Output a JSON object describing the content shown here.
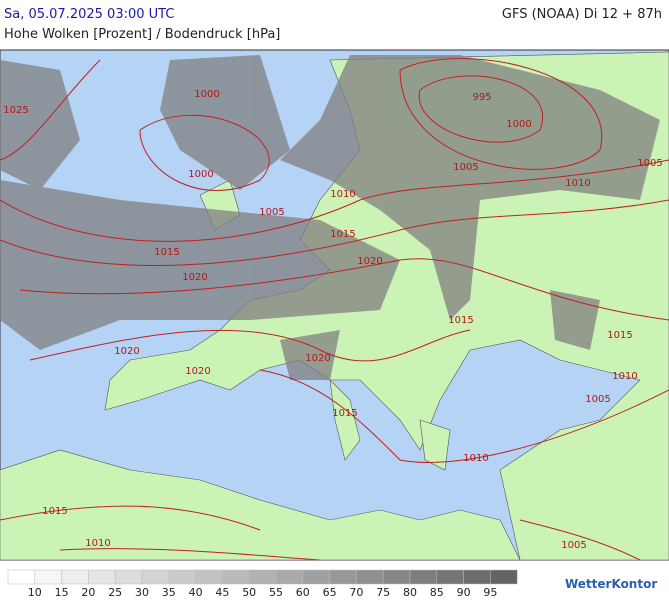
{
  "header": {
    "datetime": "Sa, 05.07.2025 03:00 UTC",
    "model": "GFS (NOAA) Di 12 + 87h",
    "subtitle": "Hohe Wolken [Prozent] / Bodendruck [hPa]"
  },
  "isobar_labels": [
    "1000",
    "995",
    "1000",
    "1025",
    "1000",
    "1005",
    "1005",
    "1010",
    "1010",
    "1005",
    "1015",
    "1015",
    "1020",
    "1020",
    "1015",
    "1015",
    "1020",
    "1020",
    "1020",
    "1010",
    "1005",
    "1015",
    "1010",
    "1015",
    "1010",
    "1005"
  ],
  "legend": {
    "labels": [
      "10",
      "15",
      "20",
      "25",
      "30",
      "35",
      "40",
      "45",
      "50",
      "55",
      "60",
      "65",
      "70",
      "75",
      "80",
      "85",
      "90",
      "95"
    ]
  },
  "logo": "WetterKontor"
}
